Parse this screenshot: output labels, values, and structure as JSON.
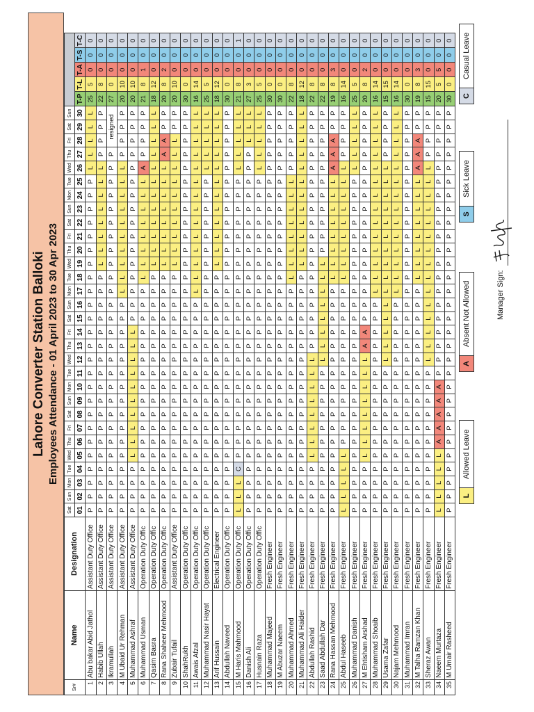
{
  "title": "Lahore Converter Station Balloki",
  "subtitle": "Employees Attendance - 01 April 2023 to 30 Apr 2023",
  "columns": {
    "sr": "Sr#",
    "name": "Name",
    "designation": "Designation",
    "totals": [
      "T-P",
      "T-L",
      "T-A",
      "T-S",
      "T-C"
    ]
  },
  "days": [
    {
      "num": "01",
      "dow": "Sat"
    },
    {
      "num": "02",
      "dow": "Sun"
    },
    {
      "num": "03",
      "dow": "Mon"
    },
    {
      "num": "04",
      "dow": "Tue"
    },
    {
      "num": "05",
      "dow": "Wed"
    },
    {
      "num": "06",
      "dow": "Thu"
    },
    {
      "num": "07",
      "dow": "Fri"
    },
    {
      "num": "08",
      "dow": "Sat"
    },
    {
      "num": "09",
      "dow": "Sun"
    },
    {
      "num": "10",
      "dow": "Mon"
    },
    {
      "num": "11",
      "dow": "Tue"
    },
    {
      "num": "12",
      "dow": "Wed"
    },
    {
      "num": "13",
      "dow": "Thu"
    },
    {
      "num": "14",
      "dow": "Fri"
    },
    {
      "num": "15",
      "dow": "Sat"
    },
    {
      "num": "16",
      "dow": "Sun"
    },
    {
      "num": "17",
      "dow": "Mon"
    },
    {
      "num": "18",
      "dow": "Tue"
    },
    {
      "num": "19",
      "dow": "Wed"
    },
    {
      "num": "20",
      "dow": "Thu"
    },
    {
      "num": "21",
      "dow": "Fri"
    },
    {
      "num": "22",
      "dow": "Sat"
    },
    {
      "num": "23",
      "dow": "Sun"
    },
    {
      "num": "24",
      "dow": "Mon"
    },
    {
      "num": "25",
      "dow": "Tue"
    },
    {
      "num": "26",
      "dow": "Wed"
    },
    {
      "num": "27",
      "dow": "Thu"
    },
    {
      "num": "28",
      "dow": "Fri"
    },
    {
      "num": "29",
      "dow": "Sat"
    },
    {
      "num": "30",
      "dow": "Sun"
    }
  ],
  "employees": [
    {
      "sr": "1",
      "name": "Abu bakar Abid Jathol",
      "designation": "Assistant Duty Office",
      "att": "PPPPPPPPPPPPPPPPPPPPPPPPPLLLLL",
      "totals": [
        25,
        5,
        0,
        0,
        0
      ]
    },
    {
      "sr": "2",
      "name": "Habib Ullah",
      "designation": "Assistant Duty Office",
      "att": "PPPPPPPPPPPPPPPPPPLLLLLLLLPPPP",
      "totals": [
        22,
        8,
        0,
        0,
        0
      ]
    },
    {
      "sr": "3",
      "name": "Ikramullah",
      "designation": "Assistant Duty Office",
      "att": "PPPPPPPPPPPPPPPPPPPPPPPPPPP",
      "note": "resigned",
      "totals": [
        27,
        0,
        0,
        0,
        0
      ]
    },
    {
      "sr": "4",
      "name": "M Ubaid Ur Rehman",
      "designation": "Assistant Duty Office",
      "att": "PPPPPPPPPPPPPPPPLLLLLLLLLLPPPP",
      "totals": [
        20,
        10,
        0,
        0,
        0
      ]
    },
    {
      "sr": "5",
      "name": "Muhammad Ashraf",
      "designation": "Assistant Duty Office",
      "att": "PPPPLLLLLLLLLLPPPPPPPPPPPPPPPP",
      "totals": [
        20,
        10,
        0,
        0,
        0
      ]
    },
    {
      "sr": "6",
      "name": "Muhammad Usman",
      "designation": "Operation Duty Offic",
      "att": "PPPPPPPPPPPPPPPPPLLLLLLLLAPPPP",
      "totals": [
        21,
        8,
        1,
        0,
        0
      ]
    },
    {
      "sr": "7",
      "name": "Qasim Basra",
      "designation": "Operation Duty Offic",
      "att": "PPPPPPPPPPPPPPPPPPLLLLLLLLLLLL",
      "totals": [
        18,
        12,
        0,
        0,
        0
      ]
    },
    {
      "sr": "8",
      "name": "Rana Shaheer Mehmood",
      "designation": "Operation Duty Offic",
      "att": "PPPPPPPPPPPPPPPPPPLLLLLLLLAAPP",
      "totals": [
        20,
        8,
        2,
        0,
        0
      ]
    },
    {
      "sr": "9",
      "name": "Zubair Tufail",
      "designation": "Assistant Duty Office",
      "att": "PPPPPPPPPPPPPPPPPPLLLLLLLLLLPP",
      "totals": [
        20,
        10,
        0,
        0,
        0
      ]
    },
    {
      "sr": "10",
      "name": "ShahRukh",
      "designation": "Operation Duty Offic",
      "att": "PPPPPPPPPPPPPPPPPPPPPPPPPPPPPP",
      "totals": [
        30,
        0,
        0,
        0,
        0
      ]
    },
    {
      "sr": "11",
      "name": "Awais Afzal",
      "designation": "Operation Duty Offic",
      "att": "PPPPPPPPPPPPPPPPLLLLLLLLLLLLLL",
      "totals": [
        16,
        14,
        0,
        0,
        0
      ]
    },
    {
      "sr": "12",
      "name": "Muhammad Nasir Hayat",
      "designation": "Operation Duty Offic",
      "att": "PPPPPPPPPPPPPPPPPPPPPPPPPLLLLL",
      "totals": [
        25,
        5,
        0,
        0,
        0
      ]
    },
    {
      "sr": "13",
      "name": "Arif Hussain",
      "designation": "Electrical Engineer",
      "att": "PPPPPPPPPPPPPPPPPPLLLLLLLLLLLL",
      "totals": [
        18,
        12,
        0,
        0,
        0
      ]
    },
    {
      "sr": "14",
      "name": "Abdullah Naveed",
      "designation": "Operation Duty Offic",
      "att": "PPPPPPPPPPPPPPPPPPPPPPPPPPPPPP",
      "totals": [
        30,
        0,
        0,
        0,
        0
      ]
    },
    {
      "sr": "15",
      "name": "M Haris Mahmood",
      "designation": "Operation Duty Offic",
      "att": "LLLCPPPPPPPPPPPPPPPPPPPPPLLLLL",
      "totals": [
        21,
        8,
        0,
        0,
        1
      ]
    },
    {
      "sr": "16",
      "name": "Danish Ali",
      "designation": "Operation Duty Offic",
      "att": "PPPPPPPPPPPPPPPPPPPPPPPPPPPLLL",
      "totals": [
        27,
        3,
        0,
        0,
        0
      ]
    },
    {
      "sr": "17",
      "name": "Husnain Raza",
      "designation": "Operation Duty Offic",
      "att": "PPPPPPPPPPPPPPPPPPPPPPPPPLLLLL",
      "totals": [
        25,
        5,
        0,
        0,
        0
      ]
    },
    {
      "sr": "18",
      "name": "Muhammad Majeed",
      "designation": "Fresh Engineer",
      "att": "PPPPPPPPPPPPPPPPPPPPPPPPPPPPPP",
      "totals": [
        30,
        0,
        0,
        0,
        0
      ]
    },
    {
      "sr": "19",
      "name": "M Abuzar Naeem",
      "designation": "Fresh Engineer",
      "att": "PPPPPPPPPPPPPPPPPPPPPPPPPPPPPP",
      "totals": [
        30,
        0,
        0,
        0,
        0
      ]
    },
    {
      "sr": "20",
      "name": "Muhammad Ahmed",
      "designation": "Fresh Engineer",
      "att": "PPPPPPPPPPPPPPPPPLLLLLLLLPPPPP",
      "totals": [
        22,
        8,
        0,
        0,
        0
      ]
    },
    {
      "sr": "21",
      "name": "Muhammad Ali Haider",
      "designation": "Fresh Engineer",
      "att": "PPPPPPPPPPPPPPPPPPLLLLLLLLLLLL",
      "totals": [
        18,
        12,
        0,
        0,
        0
      ]
    },
    {
      "sr": "22",
      "name": "Abdullah Rashid",
      "designation": "Fresh Engineer",
      "att": "PPPPLLLLLLLLPPPPPPPPPPPPPPPPPP",
      "totals": [
        22,
        8,
        0,
        0,
        0
      ]
    },
    {
      "sr": "23",
      "name": "Saad Abdullah Dar",
      "designation": "Fresh Engineer",
      "att": "PPPPPPPPPPPLLLLLLLLPPPPPPPPPPP",
      "totals": [
        22,
        8,
        0,
        0,
        0
      ]
    },
    {
      "sr": "24",
      "name": "Rana Hassan Mehmood",
      "designation": "Fresh Engineer",
      "att": "PPPPPPPPPPPPPPPPPLLLLLLLLAAAPP",
      "totals": [
        19,
        8,
        3,
        0,
        0
      ]
    },
    {
      "sr": "25",
      "name": "Abdul Haseeb",
      "designation": "Fresh Engineer",
      "att": "LLLLLPPPPPPPPPPPPLLLLLLLLLPPPP",
      "totals": [
        16,
        14,
        0,
        0,
        0
      ]
    },
    {
      "sr": "26",
      "name": "Muhammad Danish",
      "designation": "Fresh Engineer",
      "att": "PPPPPPPPPPPPPPPPPPPPPPPPPLLLLL",
      "totals": [
        25,
        5,
        0,
        0,
        0
      ]
    },
    {
      "sr": "27",
      "name": "M Ehtisham Arshad",
      "designation": "Fresh Engineer",
      "att": "PPPPLLLLLLLLAAPPPPPPPPPPPPPPPP",
      "totals": [
        20,
        8,
        2,
        0,
        0
      ]
    },
    {
      "sr": "28",
      "name": "Muhammad Shoaib",
      "designation": "Fresh Engineer",
      "att": "PPPPPPPPPPPPPPPPLLLLLLLLLLLLLL",
      "totals": [
        16,
        14,
        0,
        0,
        0
      ]
    },
    {
      "sr": "29",
      "name": "Usama Zafar",
      "designation": "Fresh Engineer",
      "att": "PPPPPPPPPPPLLLLLLLLLLLLLLLPPPP",
      "totals": [
        15,
        15,
        0,
        0,
        0
      ]
    },
    {
      "sr": "30",
      "name": "Najam Mehmood",
      "designation": "Fresh Engineer",
      "att": "PPPPPPPPPPPPPPPPLLLLLLLLLLLLLL",
      "totals": [
        16,
        14,
        0,
        0,
        0
      ]
    },
    {
      "sr": "31",
      "name": "Muhammad Imran",
      "designation": "Fresh Engineer",
      "att": "PPPPPPPPPPPPPPPPPPPPPPPPPPPPPP",
      "totals": [
        30,
        0,
        0,
        0,
        0
      ]
    },
    {
      "sr": "32",
      "name": "M Talha Ramzan Khan",
      "designation": "Fresh Engineer",
      "att": "PPPPPPPPPPPPPPPPPLLLLLLLLAAAPP",
      "totals": [
        19,
        8,
        3,
        0,
        0
      ]
    },
    {
      "sr": "33",
      "name": "Sheraz Awan",
      "designation": "Fresh Engineer",
      "att": "PPPPPPPPPPPLLLLLLLLLLLLLLLPPPP",
      "totals": [
        15,
        15,
        0,
        0,
        0
      ]
    },
    {
      "sr": "34",
      "name": "Naeem Murtaza",
      "designation": "Fresh Engineer",
      "att": "LLLLLAAAAAPPPPPPPPPPPPPPPPPPPP",
      "totals": [
        20,
        5,
        5,
        0,
        0
      ]
    },
    {
      "sr": "35",
      "name": "M Umair Rasheed",
      "designation": "Fresh Engineer",
      "att": "PPPPPPPPPPPPPPPPPPPPPPPPPPPPPP",
      "totals": [
        30,
        0,
        0,
        0,
        0
      ]
    }
  ],
  "legend": [
    {
      "code": "L",
      "label": "Allowed Leave",
      "color": "#fbef82"
    },
    {
      "code": "A",
      "label": "Absent Not Allowed",
      "color": "#f2877a"
    },
    {
      "code": "S",
      "label": "Sick Leave",
      "color": "#8fcdea"
    },
    {
      "code": "C",
      "label": "Casual Leave",
      "color": "#d5dbe6"
    }
  ],
  "colors": {
    "title_band": "#f6c3a6",
    "present": "#ffffff",
    "total_present": "#97cf74"
  },
  "signature": {
    "label": "Manager Sign:"
  }
}
